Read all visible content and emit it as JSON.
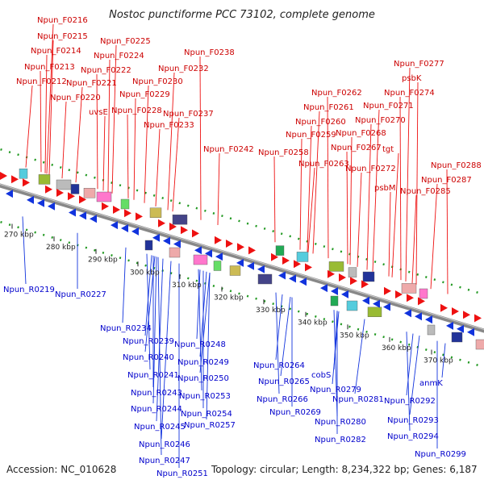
{
  "title": "Nostoc punctiforme PCC 73102, complete genome",
  "footer": {
    "accession": "Accession: NC_010628",
    "summary": "Topology: circular; Length: 8,234,322 bp; Genes: 6,187"
  },
  "scale_ticks": [
    "270 kbp",
    "280 kbp",
    "290 kbp",
    "300 kbp",
    "310 kbp",
    "320 kbp",
    "330 kbp",
    "340 kbp",
    "350 kbp",
    "360 kbp",
    "370 kbp"
  ],
  "forward_labels": [
    "Npun_F0216",
    "Npun_F0215",
    "Npun_F0214",
    "Npun_F0213",
    "Npun_F0212",
    "Npun_F0225",
    "Npun_F0224",
    "Npun_F0222",
    "Npun_F0221",
    "Npun_F0220",
    "uvsE",
    "Npun_F0238",
    "Npun_F0232",
    "Npun_F0230",
    "Npun_F0229",
    "Npun_F0228",
    "Npun_F0237",
    "Npun_F0233",
    "Npun_F0242",
    "Npun_F0262",
    "Npun_F0261",
    "Npun_F0260",
    "Npun_F0259",
    "Npun_F0258",
    "Npun_F0263",
    "Npun_F0277",
    "psbK",
    "Npun_F0274",
    "Npun_F0271",
    "Npun_F0270",
    "Npun_F0268",
    "Npun_F0267",
    "tgt",
    "Npun_F0272",
    "psbM",
    "Npun_F0288",
    "Npun_F0287",
    "Npun_F0285"
  ],
  "reverse_labels": [
    "Npun_R0219",
    "Npun_R0227",
    "Npun_R0234",
    "Npun_R0239",
    "Npun_R0240",
    "Npun_R0241",
    "Npun_R0243",
    "Npun_R0244",
    "Npun_R0245",
    "Npun_R0246",
    "Npun_R0247",
    "Npun_R0251",
    "Npun_R0248",
    "Npun_R0249",
    "Npun_R0250",
    "Npun_R0253",
    "Npun_R0254",
    "Npun_R0257",
    "Npun_R0264",
    "Npun_R0265",
    "Npun_R0266",
    "Npun_R0269",
    "cobS",
    "Npun_R0279",
    "Npun_R0281",
    "Npun_R0280",
    "Npun_R0282",
    "anmK",
    "Npun_R0292",
    "Npun_R0293",
    "Npun_R0294",
    "Npun_R0299"
  ],
  "colors": {
    "forward": "#ee1111",
    "reverse": "#1133dd",
    "backbone": "#888888",
    "tick": "#229922"
  }
}
